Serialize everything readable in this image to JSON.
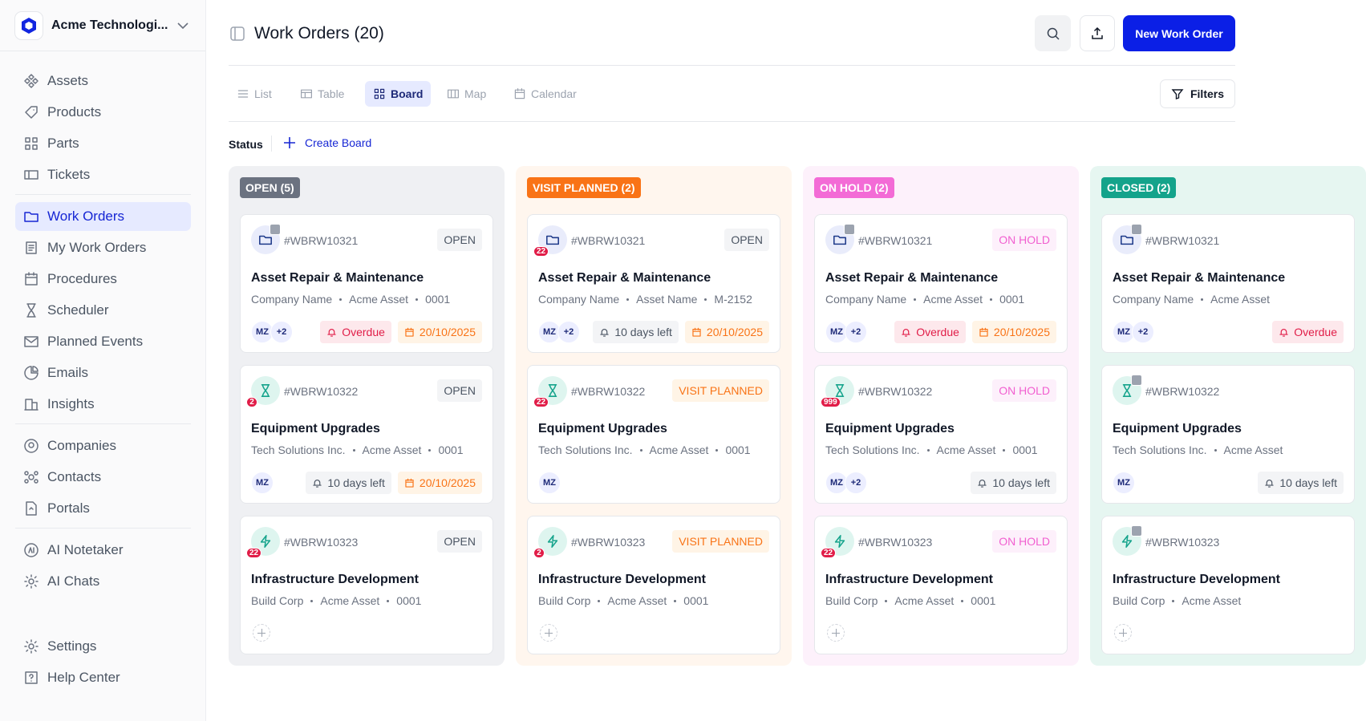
{
  "sidebar": {
    "workspace": "Acme Technologi...",
    "nav_groups": [
      [
        "Assets",
        "Products",
        "Parts",
        "Tickets"
      ],
      [
        "Work Orders",
        "My Work Orders",
        "Procedures",
        "Scheduler",
        "Planned Events",
        "Emails",
        "Insights"
      ],
      [
        "Companies",
        "Contacts",
        "Portals"
      ],
      [
        "AI Notetaker",
        "AI Chats"
      ]
    ],
    "active_item": [
      1,
      0
    ],
    "footer": [
      "Settings",
      "Help Center"
    ]
  },
  "header": {
    "title": "Work Orders (20)",
    "new_button": "New Work Order"
  },
  "views": {
    "tabs": [
      "List",
      "Table",
      "Board",
      "Map",
      "Calendar"
    ],
    "active": 2,
    "filters": "Filters"
  },
  "board": {
    "group_label": "Status",
    "create": "Create Board",
    "columns": [
      {
        "label": "OPEN (5)",
        "label_color": "#6b7280",
        "background": "#eff0f3",
        "cards": [
          {
            "id": "#WBRW10321",
            "badge": null,
            "status": "OPEN",
            "status_color": "#4b5563",
            "status_bg": "#f3f4f6",
            "title": "Asset Repair & Maintenance",
            "meta": [
              "Company Name",
              "Acme Asset",
              "0001"
            ],
            "assignees": [
              "MZ",
              "+2"
            ],
            "alert": {
              "text": "Overdue",
              "color": "#e11d48",
              "bg": "#fde8ec"
            },
            "date": "20/10/2025",
            "add": false
          },
          {
            "id": "#WBRW10322",
            "badge": "2",
            "status": "OPEN",
            "status_color": "#4b5563",
            "status_bg": "#f3f4f6",
            "title": "Equipment Upgrades",
            "meta": [
              "Tech Solutions Inc.",
              "Acme Asset",
              "0001"
            ],
            "assignees": [
              "MZ"
            ],
            "alert": {
              "text": "10 days left",
              "color": "#4b5563",
              "bg": "#f3f4f6"
            },
            "date": "20/10/2025",
            "add": false
          },
          {
            "id": "#WBRW10323",
            "badge": "22",
            "status": "OPEN",
            "status_color": "#4b5563",
            "status_bg": "#f3f4f6",
            "title": "Infrastructure Development",
            "meta": [
              "Build Corp",
              "Acme Asset",
              "0001"
            ],
            "assignees": [],
            "alert": null,
            "date": null,
            "add": true
          }
        ]
      },
      {
        "label": "VISIT PLANNED (2)",
        "label_color": "#f97316",
        "background": "#fff6ee",
        "cards": [
          {
            "id": "#WBRW10321",
            "badge": "22",
            "status": "OPEN",
            "status_color": "#4b5563",
            "status_bg": "#f3f4f6",
            "title": "Asset Repair & Maintenance",
            "meta": [
              "Company Name",
              "Asset Name",
              "M-2152"
            ],
            "assignees": [
              "MZ",
              "+2"
            ],
            "alert": {
              "text": "10 days left",
              "color": "#4b5563",
              "bg": "#f3f4f6"
            },
            "date": "20/10/2025",
            "add": false
          },
          {
            "id": "#WBRW10322",
            "badge": "22",
            "status": "VISIT PLANNED",
            "status_color": "#f97316",
            "status_bg": "#fff4e6",
            "title": "Equipment Upgrades",
            "meta": [
              "Tech Solutions Inc.",
              "Acme Asset",
              "0001"
            ],
            "assignees": [
              "MZ"
            ],
            "alert": null,
            "date": null,
            "add": false
          },
          {
            "id": "#WBRW10323",
            "badge": "2",
            "status": "VISIT PLANNED",
            "status_color": "#f97316",
            "status_bg": "#fff4e6",
            "title": "Infrastructure Development",
            "meta": [
              "Build Corp",
              "Acme Asset",
              "0001"
            ],
            "assignees": [],
            "alert": null,
            "date": null,
            "add": true
          }
        ]
      },
      {
        "label": "ON HOLD (2)",
        "label_color": "#f36bd6",
        "background": "#fdf1fb",
        "cards": [
          {
            "id": "#WBRW10321",
            "badge": null,
            "status": "ON HOLD",
            "status_color": "#f15fd0",
            "status_bg": "#fdf0fb",
            "title": "Asset Repair & Maintenance",
            "meta": [
              "Company Name",
              "Acme Asset",
              "0001"
            ],
            "assignees": [
              "MZ",
              "+2"
            ],
            "alert": {
              "text": "Overdue",
              "color": "#e11d48",
              "bg": "#fde8ec"
            },
            "date": "20/10/2025",
            "add": false
          },
          {
            "id": "#WBRW10322",
            "badge": "999",
            "status": "ON HOLD",
            "status_color": "#f15fd0",
            "status_bg": "#fdf0fb",
            "title": "Equipment Upgrades",
            "meta": [
              "Tech Solutions Inc.",
              "Acme Asset",
              "0001"
            ],
            "assignees": [
              "MZ",
              "+2"
            ],
            "alert": {
              "text": "10 days left",
              "color": "#4b5563",
              "bg": "#f3f4f6"
            },
            "date": null,
            "add": false
          },
          {
            "id": "#WBRW10323",
            "badge": "22",
            "status": "ON HOLD",
            "status_color": "#f15fd0",
            "status_bg": "#fdf0fb",
            "title": "Infrastructure Development",
            "meta": [
              "Build Corp",
              "Acme Asset",
              "0001"
            ],
            "assignees": [],
            "alert": null,
            "date": null,
            "add": true
          }
        ]
      },
      {
        "label": "CLOSED (2)",
        "label_color": "#14a38b",
        "background": "#e6f6f1",
        "cards": [
          {
            "id": "#WBRW10321",
            "badge": null,
            "status": null,
            "status_color": "#4b5563",
            "status_bg": "#f3f4f6",
            "title": "Asset Repair & Maintenance",
            "meta": [
              "Company Name",
              "Acme Asset"
            ],
            "assignees": [
              "MZ",
              "+2"
            ],
            "alert": {
              "text": "Overdue",
              "color": "#e11d48",
              "bg": "#fde8ec"
            },
            "date": null,
            "add": false
          },
          {
            "id": "#WBRW10322",
            "badge": null,
            "status": null,
            "status_color": "#4b5563",
            "status_bg": "#f3f4f6",
            "title": "Equipment Upgrades",
            "meta": [
              "Tech Solutions Inc.",
              "Acme Asset"
            ],
            "assignees": [
              "MZ"
            ],
            "alert": {
              "text": "10 days left",
              "color": "#4b5563",
              "bg": "#f3f4f6"
            },
            "date": null,
            "add": false
          },
          {
            "id": "#WBRW10323",
            "badge": null,
            "status": null,
            "status_color": "#4b5563",
            "status_bg": "#f3f4f6",
            "title": "Infrastructure Development",
            "meta": [
              "Build Corp",
              "Acme Asset"
            ],
            "assignees": [],
            "alert": null,
            "date": null,
            "add": true
          }
        ]
      }
    ]
  }
}
